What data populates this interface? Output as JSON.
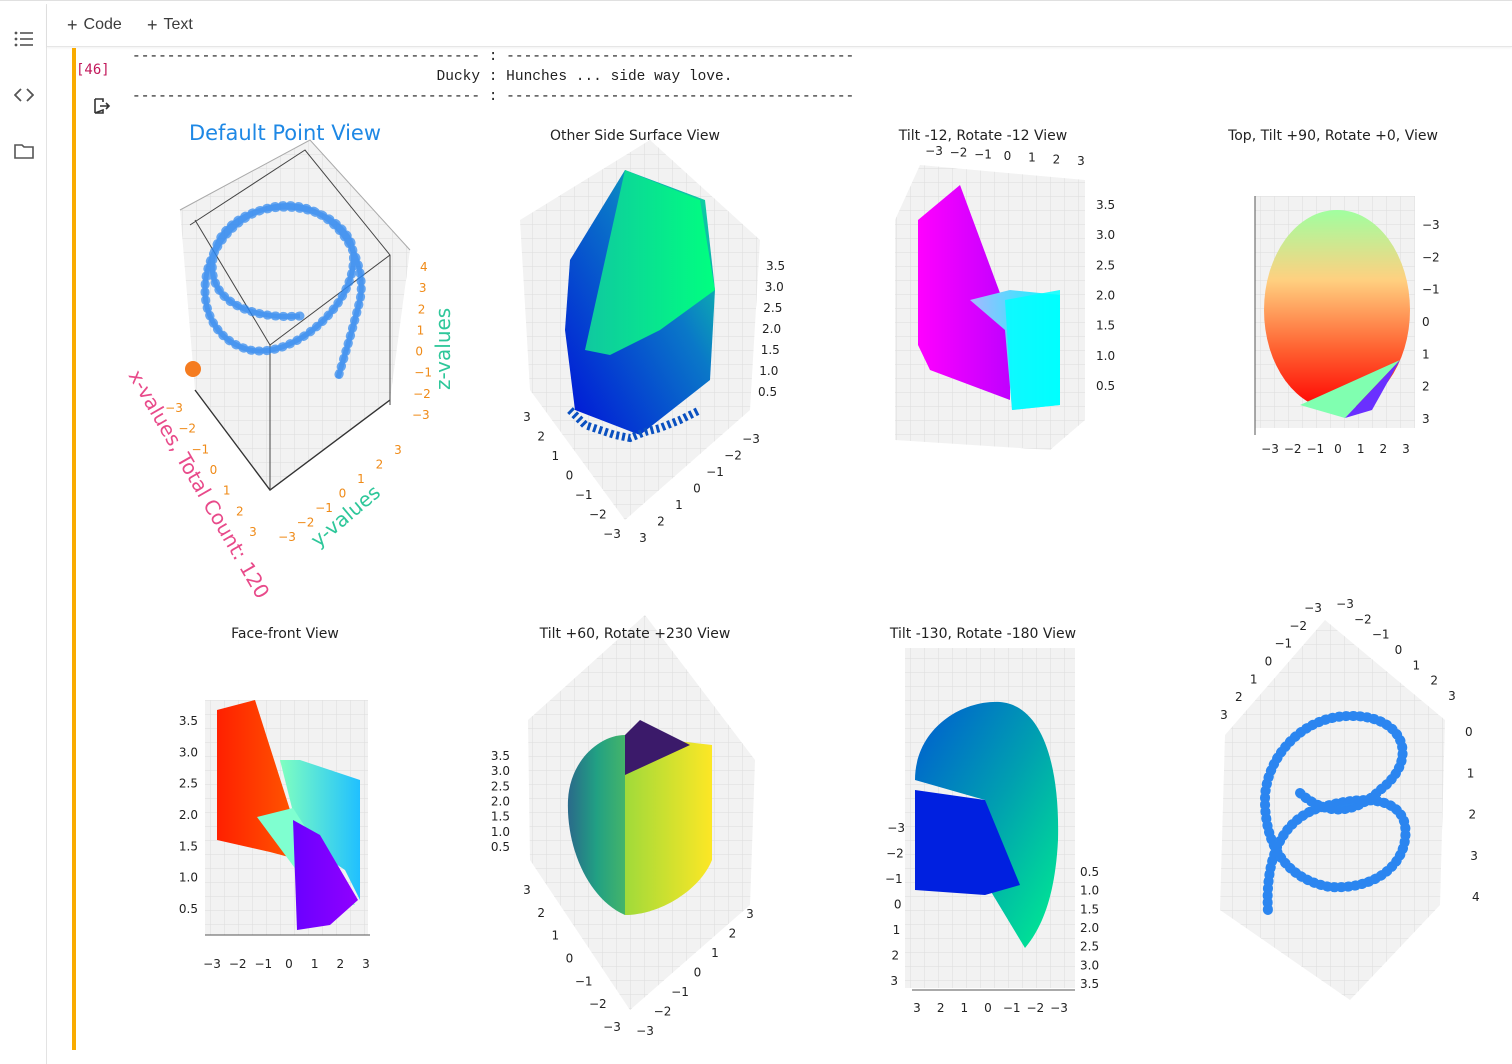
{
  "sidebar": {
    "icons": [
      "table-of-contents-icon",
      "code-snippets-icon",
      "files-folder-icon"
    ]
  },
  "toolbar": {
    "code_label": "Code",
    "text_label": "Text"
  },
  "cell": {
    "execution_count": "[46]",
    "output": {
      "divider_line": "---------------------------------------- : ----------------------------------------",
      "message_line": "                                   Ducky : Hunches ... side way love."
    }
  },
  "figure": {
    "colors": {
      "title_blue": "#1e88e5",
      "axis_pink": "#e84a8a",
      "axis_green": "#2ec79a",
      "tick_orange": "#ef8a17",
      "point_orange": "#f57c20",
      "scatter_blue": "#2b86f0"
    },
    "panels": [
      {
        "title": "Default Point View",
        "xlabel": "x-values, Total Count: 120",
        "ylabel": "y-values",
        "zlabel": "z-values",
        "x_ticks": [
          "−3",
          "−2",
          "−1",
          "0",
          "1",
          "2",
          "3"
        ],
        "y_ticks": [
          "−3",
          "−2",
          "−1",
          "0",
          "1",
          "2",
          "3"
        ],
        "z_ticks": [
          "4",
          "3",
          "2",
          "1",
          "0",
          "−1",
          "−2",
          "−3"
        ]
      },
      {
        "title": "Other Side Surface View",
        "z_ticks": [
          "3.5",
          "3.0",
          "2.5",
          "2.0",
          "1.5",
          "1.0",
          "0.5"
        ],
        "left_ticks": [
          "3",
          "2",
          "1",
          "0",
          "−1",
          "−2",
          "−3"
        ],
        "right_ticks": [
          "−3",
          "−2",
          "−1",
          "0",
          "1",
          "2",
          "3"
        ]
      },
      {
        "title": "Tilt -12, Rotate -12 View",
        "top_ticks": [
          "−3",
          "−2",
          "−1",
          "0",
          "1",
          "2",
          "3"
        ],
        "z_ticks": [
          "3.5",
          "3.0",
          "2.5",
          "2.0",
          "1.5",
          "1.0",
          "0.5"
        ]
      },
      {
        "title": "Top, Tilt +90, Rotate +0, View",
        "bottom_ticks": [
          "−3",
          "−2",
          "−1",
          "0",
          "1",
          "2",
          "3"
        ],
        "right_ticks": [
          "−3",
          "−2",
          "−1",
          "0",
          "1",
          "2",
          "3"
        ]
      },
      {
        "title": "Face-front View",
        "z_ticks": [
          "3.5",
          "3.0",
          "2.5",
          "2.0",
          "1.5",
          "1.0",
          "0.5"
        ],
        "bottom_ticks": [
          "−3",
          "−2",
          "−1",
          "0",
          "1",
          "2",
          "3"
        ]
      },
      {
        "title": "Tilt +60, Rotate +230 View",
        "z_ticks": [
          "3.5",
          "3.0",
          "2.5",
          "2.0",
          "1.5",
          "1.0",
          "0.5"
        ],
        "left_ticks": [
          "3",
          "2",
          "1",
          "0",
          "−1",
          "−2",
          "−3"
        ],
        "right_ticks": [
          "3",
          "2",
          "1",
          "0",
          "−1",
          "−2",
          "−3"
        ]
      },
      {
        "title": "Tilt -130, Rotate -180 View",
        "left_ticks": [
          "−3",
          "−2",
          "−1",
          "0",
          "1",
          "2",
          "3"
        ],
        "right_ticks": [
          "0.5",
          "1.0",
          "1.5",
          "2.0",
          "2.5",
          "3.0",
          "3.5"
        ],
        "bottom_ticks": [
          "3",
          "2",
          "1",
          "0",
          "−1",
          "−2",
          "−3"
        ]
      },
      {
        "title": "",
        "top_ticks_a": [
          "3",
          "2",
          "1",
          "0",
          "−1",
          "−2",
          "−3"
        ],
        "top_ticks_b": [
          "−3",
          "−2",
          "−1",
          "0",
          "1",
          "2",
          "3"
        ],
        "right_ticks": [
          "0",
          "1",
          "2",
          "3",
          "4"
        ]
      }
    ]
  }
}
